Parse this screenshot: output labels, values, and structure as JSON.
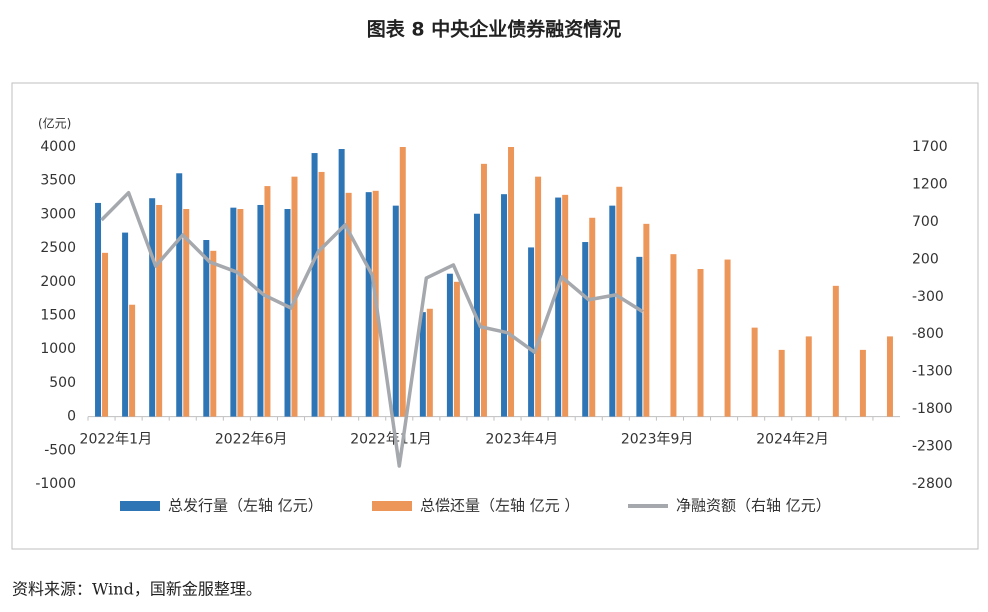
{
  "chart_data": {
    "type": "bar",
    "title": "图表 8 中央企业债券融资情况",
    "y_unit": "(亿元)",
    "source": "资料来源：Wind，国新金服整理。",
    "categories": [
      "2022年1月",
      null,
      null,
      null,
      null,
      "2022年6月",
      null,
      null,
      null,
      null,
      "2022年11月",
      null,
      null,
      null,
      null,
      "2023年4月",
      null,
      null,
      null,
      null,
      "2023年9月",
      null,
      null,
      null,
      null,
      "2024年2月",
      null,
      null,
      null,
      null
    ],
    "series": [
      {
        "name": "总发行量（左轴 亿元）",
        "type": "bar",
        "color": "#2e75b6",
        "values": [
          3170,
          2730,
          3240,
          3610,
          2620,
          3100,
          3140,
          3080,
          3910,
          3970,
          3330,
          3130,
          1550,
          2120,
          3010,
          3300,
          2510,
          3250,
          2590,
          3130,
          2370,
          null,
          null,
          null,
          null,
          null,
          null,
          null,
          null,
          null
        ]
      },
      {
        "name": "总偿还量（左轴 亿元 ）",
        "type": "bar",
        "color": "#ed965a",
        "values": [
          2430,
          1660,
          3140,
          3080,
          2460,
          3080,
          3420,
          3560,
          3630,
          3320,
          3350,
          4000,
          1600,
          2000,
          3750,
          4000,
          3560,
          3290,
          2950,
          3410,
          2860,
          2410,
          2190,
          2330,
          1320,
          990,
          1190,
          1940,
          990,
          1190
        ]
      },
      {
        "name": "净融资额（右轴 亿元）",
        "type": "line",
        "axis": "y2",
        "color": "#a5a8ad",
        "values": [
          725,
          1090,
          110,
          525,
          165,
          30,
          -275,
          -450,
          300,
          660,
          -10,
          -2560,
          -50,
          125,
          -700,
          -780,
          -1040,
          -35,
          -340,
          -275,
          -500,
          null,
          null,
          null,
          null,
          null,
          null,
          null,
          null,
          null
        ]
      }
    ],
    "ylim": [
      -1000,
      4000
    ],
    "yticks": [
      -1000,
      -500,
      0,
      500,
      1000,
      1500,
      2000,
      2500,
      3000,
      3500,
      4000
    ],
    "y2lim": [
      -2800,
      1700
    ],
    "y2ticks": [
      -2800,
      -2300,
      -1800,
      -1300,
      -800,
      -300,
      200,
      700,
      1200,
      1700
    ]
  }
}
